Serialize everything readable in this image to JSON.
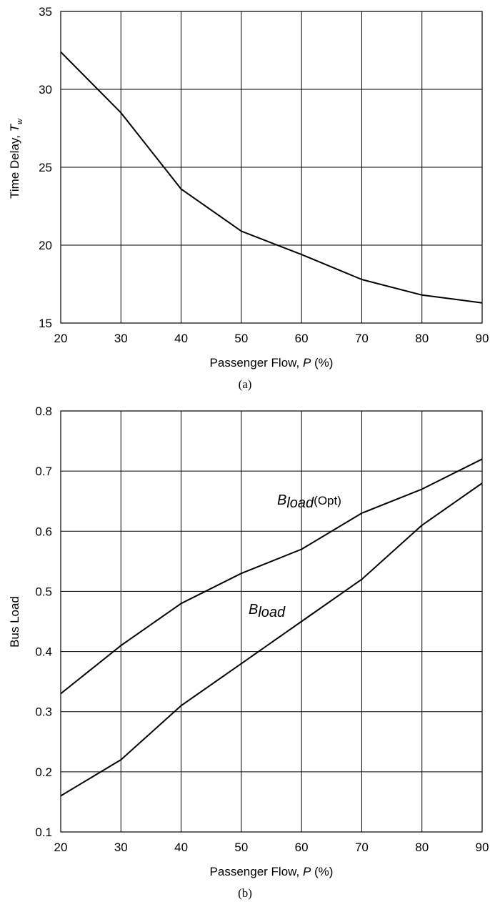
{
  "chart_data": [
    {
      "type": "line",
      "caption": "(a)",
      "xlabel_prefix": "Passenger Flow, ",
      "xlabel_var": "P",
      "xlabel_suffix": " (%)",
      "ylabel_prefix": "Time Delay, ",
      "ylabel_var": "T",
      "ylabel_sub": "w",
      "xlim": [
        20,
        90
      ],
      "ylim": [
        15,
        35
      ],
      "x_ticks": [
        "20",
        "30",
        "40",
        "50",
        "60",
        "70",
        "80",
        "90"
      ],
      "y_ticks": [
        "15",
        "20",
        "25",
        "30",
        "35"
      ],
      "grid": true,
      "series": [
        {
          "x": [
            20,
            30,
            40,
            50,
            60,
            70,
            80,
            90
          ],
          "values": [
            32.4,
            28.5,
            23.6,
            20.9,
            19.4,
            17.8,
            16.8,
            16.3
          ]
        }
      ]
    },
    {
      "type": "line",
      "caption": "(b)",
      "xlabel_prefix": "Passenger Flow, ",
      "xlabel_var": "P",
      "xlabel_suffix": " (%)",
      "ylabel": "Bus Load",
      "xlim": [
        20,
        90
      ],
      "ylim": [
        0.1,
        0.8
      ],
      "x_ticks": [
        "20",
        "30",
        "40",
        "50",
        "60",
        "70",
        "80",
        "90"
      ],
      "y_ticks": [
        "0.1",
        "0.2",
        "0.3",
        "0.4",
        "0.5",
        "0.6",
        "0.7",
        "0.8"
      ],
      "grid": true,
      "series": [
        {
          "label_main": "B",
          "label_sub": "load",
          "label_suffix": "(Opt)",
          "x": [
            20,
            30,
            40,
            50,
            60,
            70,
            80,
            90
          ],
          "values": [
            0.33,
            0.41,
            0.48,
            0.53,
            0.57,
            0.63,
            0.67,
            0.72
          ]
        },
        {
          "label_main": "B",
          "label_sub": "load",
          "label_suffix": "",
          "x": [
            20,
            30,
            40,
            50,
            60,
            70,
            80,
            90
          ],
          "values": [
            0.16,
            0.22,
            0.31,
            0.38,
            0.45,
            0.52,
            0.61,
            0.68
          ]
        }
      ]
    }
  ]
}
